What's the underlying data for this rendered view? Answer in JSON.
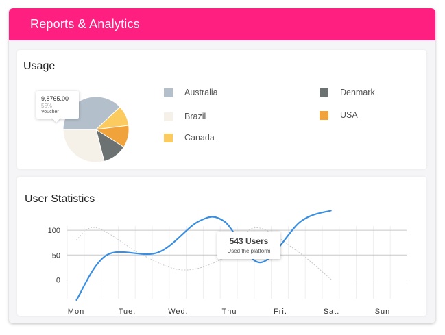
{
  "window": {
    "title": "Reports & Analytics"
  },
  "usage": {
    "title": "Usage",
    "tooltip": {
      "value": "9,8765.00",
      "percent": "55%",
      "label": "Voucher"
    },
    "legend": [
      {
        "label": "Australia",
        "color": "#b3bfca"
      },
      {
        "label": "Brazil",
        "color": "#f6f1e8"
      },
      {
        "label": "Canada",
        "color": "#fbcb5f"
      },
      {
        "label": "Denmark",
        "color": "#6c7271"
      },
      {
        "label": "USA",
        "color": "#f0a23b"
      }
    ]
  },
  "stats": {
    "title": "User Statistics",
    "tooltip": {
      "value": "543 Users",
      "label": "Used the platform"
    }
  },
  "chart_data": [
    {
      "type": "pie",
      "categories": [
        "Australia",
        "Brazil",
        "Canada",
        "Denmark",
        "USA"
      ],
      "values": [
        38,
        29,
        10,
        12,
        11
      ],
      "colors": [
        "#b3bfca",
        "#f6f1e8",
        "#fbcb5f",
        "#6c7271",
        "#f0a23b"
      ],
      "order": [
        "Australia",
        "Canada",
        "USA",
        "Denmark",
        "Brazil"
      ]
    },
    {
      "type": "line",
      "categories": [
        "Mon",
        "Tue.",
        "Wed.",
        "Thu",
        "Fri.",
        "Sat.",
        "Sun"
      ],
      "yticks": [
        0,
        50,
        100
      ],
      "ylim": [
        -45,
        125
      ],
      "grid": true,
      "series": [
        {
          "values": [
            -42,
            50,
            55,
            118,
            118,
            35,
            118,
            140
          ],
          "x": [
            0,
            0.6,
            1.6,
            2.4,
            2.9,
            3.6,
            4.4,
            5.0
          ],
          "color": "#3a8ee0"
        },
        {
          "values": [
            80,
            105,
            50,
            20,
            45,
            105,
            60,
            0
          ],
          "x": [
            0,
            0.4,
            1.3,
            2.1,
            2.9,
            3.5,
            4.3,
            5.0
          ],
          "color": "#c8c8c8",
          "dashed": true
        }
      ]
    }
  ]
}
